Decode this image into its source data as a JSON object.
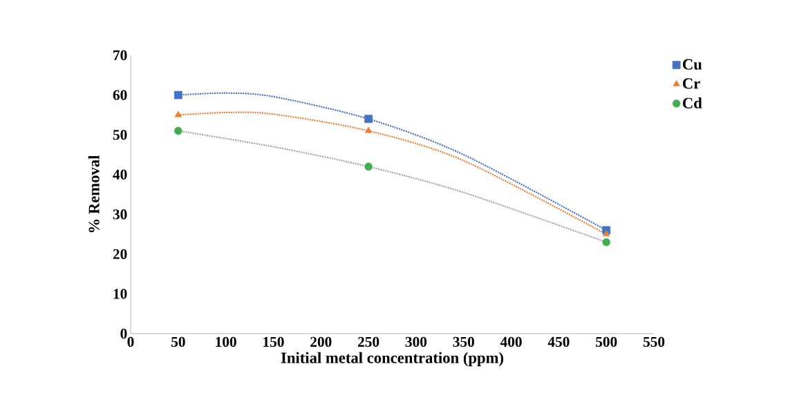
{
  "chart_data": {
    "type": "scatter",
    "xlabel": "Initial metal concentration (ppm)",
    "ylabel": "% Removal",
    "x": [
      50,
      250,
      500
    ],
    "series": [
      {
        "name": "Cu",
        "color": "#4472c4",
        "marker": "square",
        "values": [
          60,
          54,
          26
        ]
      },
      {
        "name": "Cr",
        "color": "#ed7d31",
        "marker": "triangle",
        "values": [
          55,
          51,
          25
        ]
      },
      {
        "name": "Cd",
        "color": "#3cb04c",
        "marker": "circle",
        "values": [
          51,
          42,
          23
        ]
      },
      {
        "type": "line",
        "color": "#4472c4",
        "marker": "none",
        "line_style": "dotted",
        "x": [
          50,
          100,
          150,
          250,
          350,
          500
        ],
        "values": [
          60,
          60.5,
          59.6,
          54,
          45,
          26
        ]
      },
      {
        "type": "line",
        "color": "#ed7d31",
        "marker": "none",
        "line_style": "dotted",
        "x": [
          50,
          100,
          150,
          250,
          350,
          500
        ],
        "values": [
          55,
          55.6,
          55.2,
          51,
          43.5,
          25
        ]
      },
      {
        "type": "line",
        "color": "#a5a5a5",
        "marker": "none",
        "line_style": "dotted",
        "x": [
          50,
          150,
          250,
          350,
          500
        ],
        "values": [
          51,
          47,
          42,
          35.5,
          23
        ]
      }
    ],
    "xlim": [
      0,
      550
    ],
    "xticks": [
      0,
      50,
      100,
      150,
      200,
      250,
      300,
      350,
      400,
      450,
      500,
      550
    ],
    "ylim": [
      0,
      70
    ],
    "yticks": [
      0,
      10,
      20,
      30,
      40,
      50,
      60,
      70
    ],
    "grid": false,
    "legend": "top right"
  }
}
